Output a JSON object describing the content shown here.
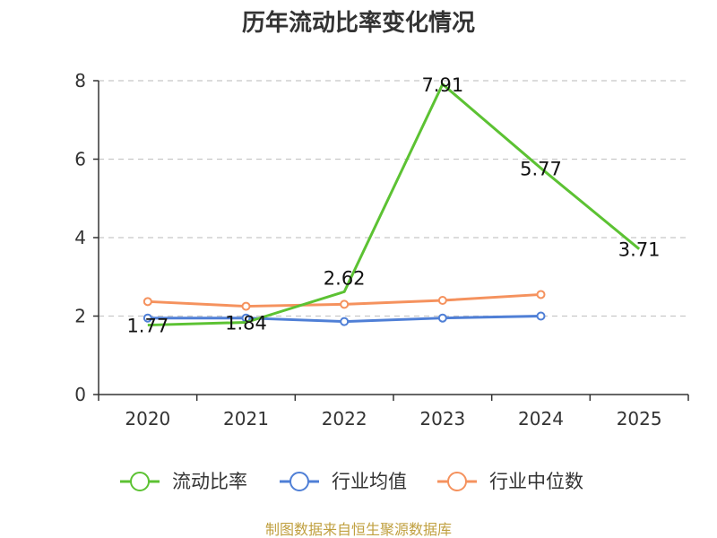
{
  "chart_data": {
    "type": "line",
    "title": "历年流动比率变化情况",
    "categories": [
      "2020",
      "2021",
      "2022",
      "2023",
      "2024",
      "2025"
    ],
    "ylim": [
      0,
      8
    ],
    "yticks": [
      "0",
      "2",
      "4",
      "6",
      "8"
    ],
    "grid": true,
    "legend_position": "bottom",
    "series": [
      {
        "name": "流动比率",
        "color": "#5cc233",
        "values": [
          1.77,
          1.84,
          2.62,
          7.91,
          5.77,
          3.71
        ],
        "labels": [
          "1.77",
          "1.84",
          "2.62",
          "7.91",
          "5.77",
          "3.71"
        ],
        "markers": false
      },
      {
        "name": "行业均值",
        "color": "#4f7fd6",
        "values": [
          1.95,
          1.95,
          1.86,
          1.95,
          2.0,
          null
        ],
        "markers": true
      },
      {
        "name": "行业中位数",
        "color": "#f5925e",
        "values": [
          2.37,
          2.25,
          2.3,
          2.4,
          2.55,
          null
        ],
        "markers": true
      }
    ]
  },
  "footer": {
    "source": "制图数据来自恒生聚源数据库"
  }
}
